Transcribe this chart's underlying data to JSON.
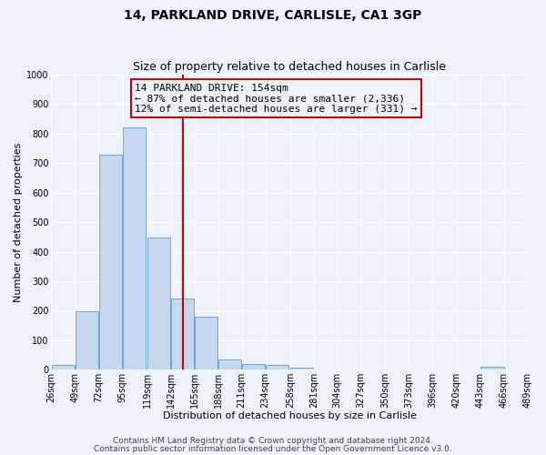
{
  "title": "14, PARKLAND DRIVE, CARLISLE, CA1 3GP",
  "subtitle": "Size of property relative to detached houses in Carlisle",
  "xlabel": "Distribution of detached houses by size in Carlisle",
  "ylabel": "Number of detached properties",
  "bar_left_edges": [
    26,
    49,
    72,
    95,
    119,
    142,
    165,
    188,
    211,
    234,
    258,
    281,
    304,
    327,
    350,
    373,
    396,
    420,
    443,
    466
  ],
  "bar_heights": [
    15,
    197,
    730,
    820,
    447,
    240,
    178,
    35,
    20,
    15,
    8,
    2,
    0,
    0,
    0,
    0,
    0,
    0,
    10,
    0
  ],
  "bin_width": 23,
  "bar_color": "#c5d8f0",
  "bar_edge_color": "#6aaad4",
  "vline_x": 154,
  "vline_color": "#cc0000",
  "annotation_line1": "14 PARKLAND DRIVE: 154sqm",
  "annotation_line2": "← 87% of detached houses are smaller (2,336)",
  "annotation_line3": "12% of semi-detached houses are larger (331) →",
  "annotation_box_color": "#cc0000",
  "xlim": [
    26,
    489
  ],
  "ylim": [
    0,
    1000
  ],
  "yticks": [
    0,
    100,
    200,
    300,
    400,
    500,
    600,
    700,
    800,
    900,
    1000
  ],
  "xtick_labels": [
    "26sqm",
    "49sqm",
    "72sqm",
    "95sqm",
    "119sqm",
    "142sqm",
    "165sqm",
    "188sqm",
    "211sqm",
    "234sqm",
    "258sqm",
    "281sqm",
    "304sqm",
    "327sqm",
    "350sqm",
    "373sqm",
    "396sqm",
    "420sqm",
    "443sqm",
    "466sqm",
    "489sqm"
  ],
  "xtick_positions": [
    26,
    49,
    72,
    95,
    119,
    142,
    165,
    188,
    211,
    234,
    258,
    281,
    304,
    327,
    350,
    373,
    396,
    420,
    443,
    466,
    489
  ],
  "footnote1": "Contains HM Land Registry data © Crown copyright and database right 2024.",
  "footnote2": "Contains public sector information licensed under the Open Government Licence v3.0.",
  "bg_color": "#eef2fc",
  "grid_color": "#ffffff",
  "title_fontsize": 10,
  "subtitle_fontsize": 9,
  "axis_label_fontsize": 8,
  "tick_fontsize": 7,
  "annotation_fontsize": 8,
  "footnote_fontsize": 6.5
}
